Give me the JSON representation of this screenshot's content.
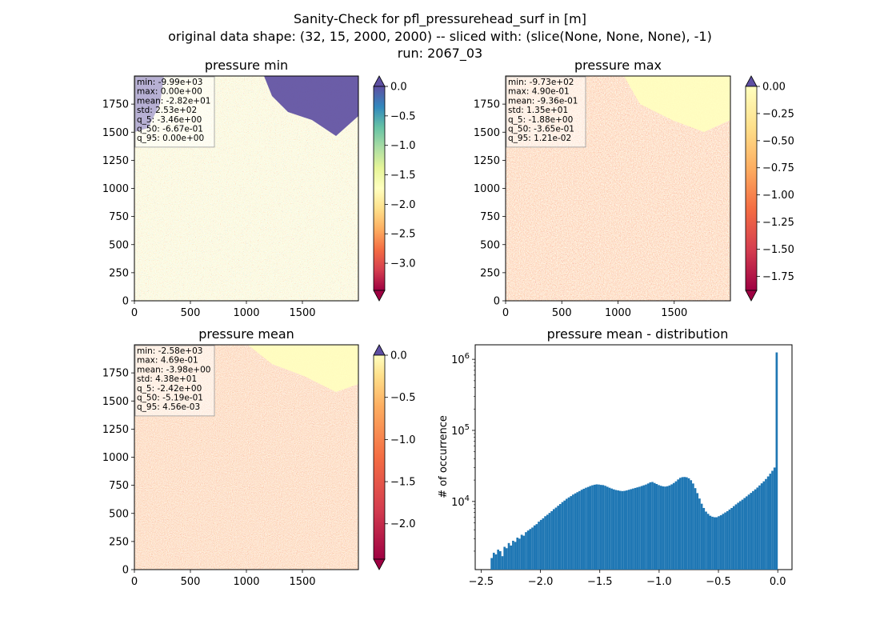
{
  "suptitle": {
    "line1": "Sanity-Check for pfl_pressurehead_surf in [m]",
    "line2": "original data shape: (32, 15, 2000, 2000) -- sliced with: (slice(None, None, None), -1)",
    "line3": "run: 2067_03"
  },
  "chart_data": [
    {
      "type": "heatmap",
      "title": "pressure min",
      "colormap": "Spectral",
      "colorbar": {
        "ticks": [
          0.0,
          -0.5,
          -1.0,
          -1.5,
          -2.0,
          -2.5,
          -3.0
        ],
        "tick_labels": [
          "0.0",
          "−0.5",
          "−1.0",
          "−1.5",
          "−2.0",
          "−2.5",
          "−3.0"
        ],
        "vmin": -3.46,
        "vmax": 0.0,
        "extend": "both"
      },
      "xticks": [
        0,
        500,
        1000,
        1500
      ],
      "yticks": [
        0,
        250,
        500,
        750,
        1000,
        1250,
        1500,
        1750
      ],
      "xlim": [
        0,
        2000
      ],
      "ylim": [
        0,
        2000
      ],
      "stats": [
        "min: -9.99e+03",
        "max: 0.00e+00",
        "mean: -2.82e+01",
        "std: 2.53e+02",
        "q_5: -3.46e+00",
        "q_50: -6.67e-01",
        "q_95: 0.00e+00"
      ]
    },
    {
      "type": "heatmap",
      "title": "pressure max",
      "colormap": "Spectral",
      "colorbar": {
        "ticks": [
          0.0,
          -0.25,
          -0.5,
          -0.75,
          -1.0,
          -1.25,
          -1.5,
          -1.75
        ],
        "tick_labels": [
          "0.00",
          "−0.25",
          "−0.50",
          "−0.75",
          "−1.00",
          "−1.25",
          "−1.50",
          "−1.75"
        ],
        "vmin": -1.88,
        "vmax": 0.0,
        "extend": "both"
      },
      "xticks": [
        0,
        500,
        1000,
        1500
      ],
      "yticks": [
        0,
        250,
        500,
        750,
        1000,
        1250,
        1500,
        1750
      ],
      "xlim": [
        0,
        2000
      ],
      "ylim": [
        0,
        2000
      ],
      "stats": [
        "min: -9.73e+02",
        "max: 4.90e-01",
        "mean: -9.36e-01",
        "std: 1.35e+01",
        "q_5: -1.88e+00",
        "q_50: -3.65e-01",
        "q_95: 1.21e-02"
      ]
    },
    {
      "type": "heatmap",
      "title": "pressure mean",
      "colormap": "Spectral",
      "colorbar": {
        "ticks": [
          0.0,
          -0.5,
          -1.0,
          -1.5,
          -2.0
        ],
        "tick_labels": [
          "0.0",
          "−0.5",
          "−1.0",
          "−1.5",
          "−2.0"
        ],
        "vmin": -2.42,
        "vmax": 0.0,
        "extend": "both"
      },
      "xticks": [
        0,
        500,
        1000,
        1500
      ],
      "yticks": [
        0,
        250,
        500,
        750,
        1000,
        1250,
        1500,
        1750
      ],
      "xlim": [
        0,
        2000
      ],
      "ylim": [
        0,
        2000
      ],
      "stats": [
        "min: -2.58e+03",
        "max: 4.69e-01",
        "mean: -3.98e+00",
        "std: 4.38e+01",
        "q_5: -2.42e+00",
        "q_50: -5.19e-01",
        "q_95: 4.56e-03"
      ]
    },
    {
      "type": "bar",
      "title": "pressure mean - distribution",
      "ylabel": "# of occurrence",
      "xlabel": "",
      "yscale": "log",
      "xlim": [
        -2.55,
        0.12
      ],
      "ylim": [
        1100,
        1600000
      ],
      "xticks": [
        -2.5,
        -2.0,
        -1.5,
        -1.0,
        -0.5,
        0.0
      ],
      "xtick_labels": [
        "−2.5",
        "−2.0",
        "−1.5",
        "−1.0",
        "−0.5",
        "0.0"
      ],
      "yticks": [
        10000,
        100000,
        1000000
      ],
      "ytick_labels": [
        "10^4",
        "10^5",
        "10^6"
      ],
      "bin_edges_range": [
        -2.42,
        0.0
      ],
      "counts": [
        1600,
        1900,
        1800,
        2100,
        2000,
        1700,
        2300,
        2200,
        2600,
        2400,
        2800,
        2700,
        3100,
        3000,
        3400,
        3300,
        3700,
        3900,
        4100,
        4300,
        4600,
        4800,
        5200,
        5500,
        5800,
        6200,
        6500,
        6900,
        7300,
        7800,
        8200,
        8700,
        9200,
        9800,
        10300,
        10900,
        11400,
        11900,
        12500,
        13000,
        13500,
        14000,
        14600,
        15100,
        15600,
        16000,
        16500,
        16900,
        17200,
        17400,
        17300,
        17100,
        17000,
        16600,
        16100,
        15600,
        15200,
        14800,
        14500,
        14300,
        14100,
        14000,
        14100,
        14300,
        14600,
        14900,
        15200,
        15500,
        15800,
        16100,
        16500,
        16900,
        17300,
        17900,
        18600,
        18800,
        18200,
        17600,
        17000,
        16600,
        16300,
        16200,
        16400,
        16800,
        17400,
        18200,
        19200,
        20400,
        21500,
        22000,
        22100,
        21900,
        21200,
        19900,
        17900,
        15400,
        13100,
        11000,
        9300,
        8100,
        7200,
        6700,
        6300,
        6100,
        6000,
        6000,
        6200,
        6400,
        6700,
        7000,
        7300,
        7700,
        8100,
        8600,
        9100,
        9600,
        10100,
        10600,
        11200,
        11800,
        12500,
        13200,
        14000,
        14800,
        15700,
        16800,
        18000,
        19200,
        20700,
        22500,
        24600,
        27000,
        30000,
        1250000
      ]
    }
  ]
}
